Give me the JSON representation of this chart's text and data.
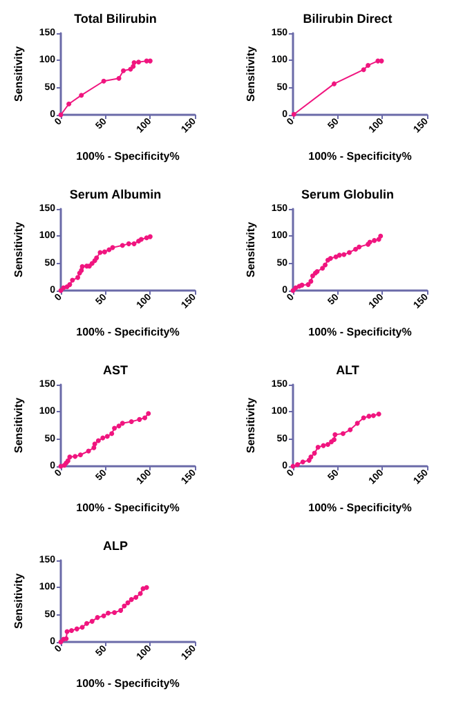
{
  "chart_data": [
    {
      "type": "line",
      "title": "Total Bilirubin",
      "xlabel": "100% - Specificity%",
      "ylabel": "Sensitivity",
      "color": "#f0157f",
      "marker": "circle",
      "xlim": [
        0,
        150
      ],
      "ylim": [
        0,
        150
      ],
      "xticks": [
        0,
        50,
        100,
        150
      ],
      "yticks": [
        0,
        50,
        100,
        150
      ],
      "x": [
        0,
        9,
        23,
        48,
        65,
        70,
        78,
        81,
        82,
        87,
        96,
        100
      ],
      "values": [
        0,
        20,
        36,
        62,
        67,
        81,
        84,
        89,
        96,
        97,
        99,
        99
      ]
    },
    {
      "type": "line",
      "title": "Bilirubin Direct",
      "xlabel": "100% - Specificity%",
      "ylabel": "Sensitivity",
      "color": "#f0157f",
      "marker": "circle",
      "xlim": [
        0,
        150
      ],
      "ylim": [
        0,
        150
      ],
      "xticks": [
        0,
        50,
        100,
        150
      ],
      "yticks": [
        0,
        50,
        100,
        150
      ],
      "x": [
        1,
        46,
        79,
        84,
        95,
        99
      ],
      "values": [
        1,
        57,
        83,
        91,
        99,
        99
      ]
    },
    {
      "type": "line",
      "title": "Serum Albumin",
      "xlabel": "100% - Specificity%",
      "ylabel": "Sensitivity",
      "color": "#f0157f",
      "marker": "circle",
      "xlim": [
        0,
        150
      ],
      "ylim": [
        0,
        150
      ],
      "xticks": [
        0,
        50,
        100,
        150
      ],
      "yticks": [
        0,
        50,
        100,
        150
      ],
      "x": [
        0,
        3,
        7,
        10,
        13,
        19,
        21,
        23,
        24,
        29,
        32,
        35,
        38,
        40,
        44,
        49,
        54,
        58,
        69,
        76,
        82,
        87,
        90,
        96,
        100
      ],
      "values": [
        0,
        5,
        7,
        11,
        19,
        24,
        32,
        37,
        44,
        45,
        45,
        50,
        55,
        60,
        70,
        71,
        75,
        79,
        83,
        86,
        86,
        91,
        94,
        97,
        99
      ]
    },
    {
      "type": "line",
      "title": "Serum Globulin",
      "xlabel": "100% - Specificity%",
      "ylabel": "Sensitivity",
      "color": "#f0157f",
      "marker": "circle",
      "xlim": [
        0,
        150
      ],
      "ylim": [
        0,
        150
      ],
      "xticks": [
        0,
        50,
        100,
        150
      ],
      "yticks": [
        0,
        50,
        100,
        150
      ],
      "x": [
        0,
        3,
        7,
        10,
        17,
        20,
        22,
        25,
        27,
        33,
        36,
        39,
        42,
        48,
        52,
        57,
        63,
        70,
        74,
        84,
        86,
        91,
        96,
        98
      ],
      "values": [
        0,
        5,
        8,
        10,
        11,
        17,
        27,
        32,
        35,
        41,
        47,
        56,
        59,
        62,
        65,
        66,
        70,
        76,
        80,
        85,
        89,
        92,
        94,
        100
      ]
    },
    {
      "type": "line",
      "title": "AST",
      "xlabel": "100% - Specificity%",
      "ylabel": "Sensitivity",
      "color": "#f0157f",
      "marker": "circle",
      "xlim": [
        0,
        150
      ],
      "ylim": [
        0,
        150
      ],
      "xticks": [
        0,
        50,
        100,
        150
      ],
      "yticks": [
        0,
        50,
        100,
        150
      ],
      "x": [
        0,
        4,
        6,
        8,
        10,
        16,
        22,
        31,
        37,
        38,
        42,
        47,
        52,
        57,
        60,
        65,
        69,
        79,
        88,
        94,
        98
      ],
      "values": [
        0,
        2,
        6,
        10,
        17,
        18,
        21,
        28,
        34,
        41,
        47,
        52,
        55,
        60,
        70,
        74,
        79,
        82,
        86,
        89,
        97
      ]
    },
    {
      "type": "line",
      "title": "ALT",
      "xlabel": "100% - Specificity%",
      "ylabel": "Sensitivity",
      "color": "#f0157f",
      "marker": "circle",
      "xlim": [
        0,
        150
      ],
      "ylim": [
        0,
        150
      ],
      "xticks": [
        0,
        50,
        100,
        150
      ],
      "yticks": [
        0,
        50,
        100,
        150
      ],
      "x": [
        0,
        5,
        11,
        18,
        20,
        24,
        28,
        34,
        39,
        43,
        46,
        47,
        56,
        64,
        72,
        79,
        85,
        90,
        96
      ],
      "values": [
        0,
        3,
        8,
        11,
        17,
        24,
        35,
        38,
        40,
        45,
        49,
        58,
        60,
        67,
        79,
        89,
        92,
        93,
        96
      ]
    },
    {
      "type": "line",
      "title": "ALP",
      "xlabel": "100% - Specificity%",
      "ylabel": "Sensitivity",
      "color": "#f0157f",
      "marker": "circle",
      "xlim": [
        0,
        150
      ],
      "ylim": [
        0,
        150
      ],
      "xticks": [
        0,
        50,
        100,
        150
      ],
      "yticks": [
        0,
        50,
        100,
        150
      ],
      "x": [
        0,
        3,
        6,
        7,
        12,
        18,
        24,
        29,
        35,
        41,
        48,
        53,
        60,
        67,
        71,
        75,
        79,
        84,
        89,
        92,
        96
      ],
      "values": [
        0,
        5,
        6,
        19,
        21,
        24,
        27,
        34,
        38,
        45,
        48,
        53,
        54,
        58,
        66,
        72,
        78,
        82,
        89,
        98,
        100
      ]
    }
  ]
}
